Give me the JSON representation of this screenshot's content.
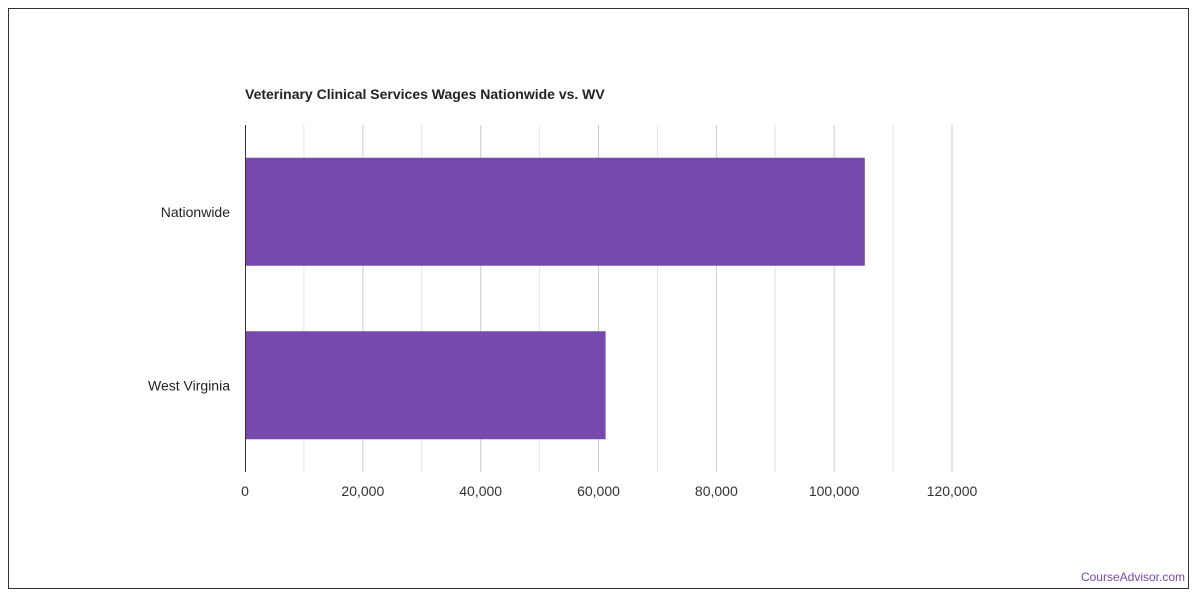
{
  "chart_data": {
    "type": "bar",
    "orientation": "horizontal",
    "title": "Veterinary Clinical Services Wages Nationwide vs. WV",
    "categories": [
      "Nationwide",
      "West Virginia"
    ],
    "values": [
      105200,
      61200
    ],
    "xlim": [
      0,
      120000
    ],
    "xticks": [
      "0",
      "20,000",
      "40,000",
      "60,000",
      "80,000",
      "100,000",
      "120,000"
    ],
    "xtick_values": [
      0,
      20000,
      40000,
      60000,
      80000,
      100000,
      120000
    ],
    "grid": true,
    "legend": "none",
    "bar_color": "#7649ad",
    "grid_color": "#cccccc",
    "minor_grid_color": "#e6e6e6"
  },
  "watermark": "CourseAdvisor.com"
}
